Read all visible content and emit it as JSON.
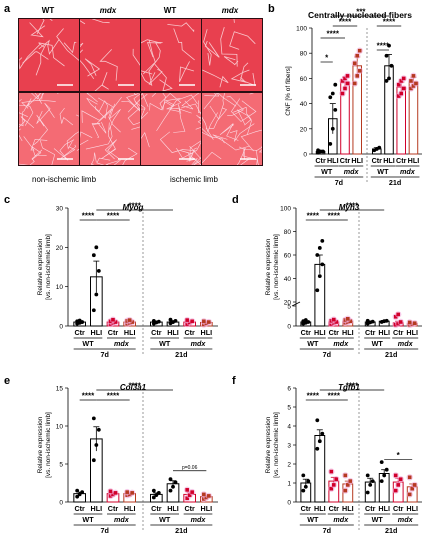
{
  "figure": {
    "panel_a": {
      "letter": "a",
      "columns": [
        "WT",
        "mdx",
        "WT",
        "mdx"
      ],
      "column_italic": [
        false,
        true,
        false,
        true
      ],
      "limbs": [
        "non-ischemic limb",
        "ischemic limb"
      ],
      "tissue_color": "#e8404f",
      "background_color": "#f46b74"
    },
    "colors": {
      "wt_ctr": "#000000",
      "wt_hli": "#000000",
      "mdx_ctr": "#d1002a",
      "mdx_hli": "#b53a20",
      "mdx_marker_glow": "#f2a6d8"
    }
  },
  "chart_data": [
    {
      "panel": "b",
      "type": "bar",
      "title": "Centrally nucleated fibers",
      "ylabel": "CNF [% of fibers]",
      "ylabel_lines": [
        "CNF [% of fibers]"
      ],
      "ylim": [
        0,
        100
      ],
      "yticks": [
        "0",
        "20",
        "40",
        "60",
        "80",
        "100"
      ],
      "categories": [
        "Ctr",
        "HLI",
        "Ctr",
        "HLI",
        "Ctr",
        "HLI",
        "Ctr",
        "HLI"
      ],
      "groups": [
        "WT",
        "mdx",
        "WT",
        "mdx"
      ],
      "times": [
        "7d",
        "21d"
      ],
      "values": [
        2,
        28,
        57,
        70,
        4,
        70,
        53,
        57
      ],
      "errors": [
        1,
        12,
        4,
        7,
        1,
        9,
        4,
        4
      ],
      "points": [
        [
          1,
          2,
          2,
          3
        ],
        [
          8,
          20,
          35,
          45,
          48,
          55
        ],
        [
          48,
          52,
          56,
          58,
          60,
          62
        ],
        [
          56,
          62,
          66,
          72,
          78,
          82
        ],
        [
          3,
          4,
          5
        ],
        [
          58,
          60,
          70,
          78,
          86
        ],
        [
          46,
          48,
          52,
          55,
          58,
          60
        ],
        [
          52,
          54,
          56,
          58,
          62
        ]
      ],
      "significance": [
        {
          "label": "*",
          "from": 0,
          "to": 1,
          "level": 0
        },
        {
          "label": "****",
          "from": 0,
          "to": 2,
          "level": 1
        },
        {
          "label": "****",
          "from": 1,
          "to": 3,
          "level": 2
        },
        {
          "label": "***",
          "from": 1,
          "to": 5,
          "level": 3
        },
        {
          "label": "****",
          "from": 4,
          "to": 5,
          "level": 0
        },
        {
          "label": "****",
          "from": 4,
          "to": 6,
          "level": 1
        }
      ]
    },
    {
      "panel": "c",
      "type": "bar",
      "title": "Myog",
      "ylabel": "Relative expression [vs. non-ischemic limb]",
      "ylabel_lines": [
        "Relative expression",
        "[vs. non-ischemic limb]"
      ],
      "ylim": [
        0,
        30
      ],
      "yticks": [
        "0",
        "10",
        "20",
        "30"
      ],
      "categories": [
        "Ctr",
        "HLI",
        "Ctr",
        "HLI",
        "Ctr",
        "HLI",
        "Ctr",
        "HLI"
      ],
      "groups": [
        "WT",
        "mdx",
        "WT",
        "mdx"
      ],
      "times": [
        "7d",
        "21d"
      ],
      "values": [
        1,
        12.5,
        1,
        1,
        1,
        1,
        1,
        0.9
      ],
      "errors": [
        0.2,
        4,
        0.3,
        0.3,
        0.2,
        0.3,
        0.3,
        0.3
      ],
      "points": [
        [
          0.6,
          0.8,
          1,
          1.2,
          1.4
        ],
        [
          4,
          8,
          14,
          18,
          20
        ],
        [
          0.5,
          0.8,
          1,
          1.2,
          1.6
        ],
        [
          0.6,
          0.8,
          1,
          1.3,
          1.5
        ],
        [
          0.6,
          0.9,
          1.1,
          1.3
        ],
        [
          0.7,
          1,
          1.3,
          1.6
        ],
        [
          0.5,
          0.9,
          1.2,
          1.5
        ],
        [
          0.4,
          0.7,
          1,
          1.2
        ]
      ],
      "significance": [
        {
          "label": "****",
          "from": 0,
          "to": 1,
          "level": 0
        },
        {
          "label": "****",
          "from": 1,
          "to": 3,
          "level": 0
        },
        {
          "label": "****",
          "from": 1,
          "to": 5,
          "level": 1
        }
      ]
    },
    {
      "panel": "d",
      "type": "bar",
      "title": "Myh3",
      "ylabel": "Relative expression [vs. non-ischemic limb]",
      "ylabel_lines": [
        "Relative expression",
        "[vs. non-ischemic limb]"
      ],
      "broken_axis": true,
      "ylim": [
        0,
        100
      ],
      "yticks": [
        "0",
        "5",
        "20",
        "40",
        "60",
        "80",
        "100"
      ],
      "categories": [
        "Ctr",
        "HLI",
        "Ctr",
        "HLI",
        "Ctr",
        "HLI",
        "Ctr",
        "HLI"
      ],
      "groups": [
        "WT",
        "mdx",
        "WT",
        "mdx"
      ],
      "times": [
        "7d",
        "21d"
      ],
      "values": [
        1,
        52,
        1,
        1.2,
        1,
        1.2,
        0.8,
        0.6
      ],
      "errors": [
        0.2,
        8,
        0.3,
        0.3,
        0.2,
        0.2,
        0.4,
        0.2
      ],
      "points": [
        [
          0.6,
          0.8,
          1,
          1.2,
          1.5
        ],
        [
          30,
          42,
          52,
          60,
          66,
          72
        ],
        [
          0.5,
          0.8,
          1,
          1.3,
          1.6
        ],
        [
          0.8,
          1,
          1.2,
          1.5,
          1.8
        ],
        [
          0.6,
          0.9,
          1.1,
          1.3
        ],
        [
          1,
          1.2,
          1.3
        ],
        [
          0.3,
          0.6,
          1,
          2.3,
          2.9
        ],
        [
          0.3,
          0.5,
          0.7,
          0.9
        ]
      ],
      "significance": [
        {
          "label": "****",
          "from": 0,
          "to": 1,
          "level": 0
        },
        {
          "label": "****",
          "from": 1,
          "to": 3,
          "level": 0
        },
        {
          "label": "****",
          "from": 1,
          "to": 5,
          "level": 1
        }
      ]
    },
    {
      "panel": "e",
      "type": "bar",
      "title": "Col3a1",
      "ylabel": "Relative expression [vs. non-ischemic limb]",
      "ylabel_lines": [
        "Relative expression",
        "[vs. non-ischemic limb]"
      ],
      "ylim": [
        0,
        15
      ],
      "yticks": [
        "0",
        "5",
        "10",
        "15"
      ],
      "categories": [
        "Ctr",
        "HLI",
        "Ctr",
        "HLI",
        "Ctr",
        "HLI",
        "Ctr",
        "HLI"
      ],
      "groups": [
        "WT",
        "mdx",
        "WT",
        "mdx"
      ],
      "times": [
        "7d",
        "21d"
      ],
      "values": [
        1.1,
        8.3,
        1.1,
        1.1,
        1,
        2.4,
        1,
        0.7
      ],
      "errors": [
        0.2,
        1.6,
        0.2,
        0.1,
        0.2,
        0.4,
        0.3,
        0.2
      ],
      "points": [
        [
          0.7,
          1,
          1.3,
          1.5
        ],
        [
          5.5,
          7.5,
          9.5,
          11
        ],
        [
          0.8,
          1,
          1.2,
          1.4
        ],
        [
          0.9,
          1,
          1.2,
          1.3
        ],
        [
          0.6,
          0.9,
          1.2,
          1.5
        ],
        [
          1.5,
          2,
          2.6,
          3
        ],
        [
          0.5,
          0.9,
          1.3,
          1.6
        ],
        [
          0.4,
          0.6,
          0.8,
          1
        ]
      ],
      "significance": [
        {
          "label": "****",
          "from": 0,
          "to": 1,
          "level": 0
        },
        {
          "label": "****",
          "from": 1,
          "to": 3,
          "level": 0
        },
        {
          "label": "****",
          "from": 1,
          "to": 5,
          "level": 1
        },
        {
          "label": "p=0.06",
          "from": 5,
          "to": 7,
          "level": 0,
          "small": true
        }
      ]
    },
    {
      "panel": "f",
      "type": "bar",
      "title": "Tgfb1",
      "ylabel": "Relative expression [vs. non-ischemic limb]",
      "ylabel_lines": [
        "Relative expression",
        "[vs. non-ischemic limb]"
      ],
      "ylim": [
        0,
        6
      ],
      "yticks": [
        "0",
        "1",
        "2",
        "3",
        "4",
        "5",
        "6"
      ],
      "categories": [
        "Ctr",
        "HLI",
        "Ctr",
        "HLI",
        "Ctr",
        "HLI",
        "Ctr",
        "HLI"
      ],
      "groups": [
        "WT",
        "mdx",
        "WT",
        "mdx"
      ],
      "times": [
        "7d",
        "21d"
      ],
      "values": [
        1,
        3.5,
        1.1,
        0.95,
        1.05,
        1.5,
        1.05,
        0.8
      ],
      "errors": [
        0.2,
        0.3,
        0.2,
        0.15,
        0.2,
        0.2,
        0.2,
        0.15
      ],
      "points": [
        [
          0.6,
          0.8,
          1.1,
          1.4
        ],
        [
          2.8,
          3.2,
          3.6,
          4.3
        ],
        [
          0.7,
          0.9,
          1.2,
          1.6
        ],
        [
          0.6,
          0.9,
          1.1,
          1.4
        ],
        [
          0.5,
          0.9,
          1.1,
          1.4
        ],
        [
          1.1,
          1.4,
          1.7,
          2.1
        ],
        [
          0.6,
          0.9,
          1.2,
          1.4
        ],
        [
          0.4,
          0.7,
          0.9,
          1.3
        ]
      ],
      "significance": [
        {
          "label": "****",
          "from": 0,
          "to": 1,
          "level": 0
        },
        {
          "label": "****",
          "from": 1,
          "to": 3,
          "level": 0
        },
        {
          "label": "****",
          "from": 1,
          "to": 5,
          "level": 1
        },
        {
          "label": "*",
          "from": 5,
          "to": 7,
          "level": 0
        }
      ]
    }
  ]
}
